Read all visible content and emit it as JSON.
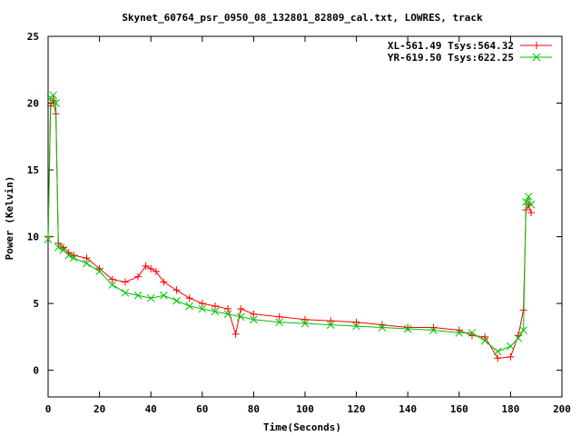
{
  "chart_data": {
    "type": "scatter",
    "title": "Skynet_60764_psr_0950_08_132801_82809_cal.txt, LOWRES, track",
    "xlabel": "Time(Seconds)",
    "ylabel": "Power (Kelvin)",
    "xlim": [
      0,
      200
    ],
    "ylim": [
      -2,
      25
    ],
    "x_ticks": [
      0,
      20,
      40,
      60,
      80,
      100,
      120,
      140,
      160,
      180,
      200
    ],
    "y_ticks": [
      0,
      5,
      10,
      15,
      20,
      25
    ],
    "grid": false,
    "legend_position": "top-right",
    "series": [
      {
        "name": "XL-561.49 Tsys:564.32",
        "color": "#ff0000",
        "marker": "plus",
        "points": [
          [
            0,
            10
          ],
          [
            1,
            19.8
          ],
          [
            2,
            20.2
          ],
          [
            3,
            19.2
          ],
          [
            4,
            9.5
          ],
          [
            6,
            9.2
          ],
          [
            8,
            8.8
          ],
          [
            10,
            8.6
          ],
          [
            15,
            8.4
          ],
          [
            20,
            7.6
          ],
          [
            25,
            6.8
          ],
          [
            30,
            6.6
          ],
          [
            35,
            7.0
          ],
          [
            38,
            7.8
          ],
          [
            40,
            7.6
          ],
          [
            42,
            7.4
          ],
          [
            45,
            6.6
          ],
          [
            50,
            6.0
          ],
          [
            55,
            5.4
          ],
          [
            60,
            5.0
          ],
          [
            65,
            4.8
          ],
          [
            70,
            4.6
          ],
          [
            73,
            2.7
          ],
          [
            75,
            4.6
          ],
          [
            80,
            4.2
          ],
          [
            90,
            4.0
          ],
          [
            100,
            3.8
          ],
          [
            110,
            3.7
          ],
          [
            120,
            3.6
          ],
          [
            130,
            3.4
          ],
          [
            140,
            3.2
          ],
          [
            150,
            3.2
          ],
          [
            160,
            3.0
          ],
          [
            165,
            2.6
          ],
          [
            170,
            2.5
          ],
          [
            175,
            0.9
          ],
          [
            180,
            1.0
          ],
          [
            183,
            2.6
          ],
          [
            185,
            4.5
          ],
          [
            186,
            12.0
          ],
          [
            187,
            12.4
          ],
          [
            188,
            11.8
          ]
        ]
      },
      {
        "name": "YR-619.50 Tsys:622.25",
        "color": "#00c000",
        "marker": "cross",
        "points": [
          [
            0,
            9.8
          ],
          [
            1,
            20.4
          ],
          [
            2,
            20.6
          ],
          [
            3,
            20.0
          ],
          [
            4,
            9.2
          ],
          [
            6,
            9.0
          ],
          [
            8,
            8.6
          ],
          [
            10,
            8.4
          ],
          [
            15,
            8.0
          ],
          [
            20,
            7.4
          ],
          [
            25,
            6.4
          ],
          [
            30,
            5.8
          ],
          [
            35,
            5.6
          ],
          [
            40,
            5.4
          ],
          [
            45,
            5.6
          ],
          [
            50,
            5.2
          ],
          [
            55,
            4.8
          ],
          [
            60,
            4.6
          ],
          [
            65,
            4.4
          ],
          [
            70,
            4.2
          ],
          [
            75,
            4.0
          ],
          [
            80,
            3.8
          ],
          [
            90,
            3.6
          ],
          [
            100,
            3.5
          ],
          [
            110,
            3.4
          ],
          [
            120,
            3.3
          ],
          [
            130,
            3.2
          ],
          [
            140,
            3.1
          ],
          [
            150,
            3.0
          ],
          [
            160,
            2.8
          ],
          [
            165,
            2.8
          ],
          [
            170,
            2.2
          ],
          [
            175,
            1.4
          ],
          [
            180,
            1.8
          ],
          [
            183,
            2.4
          ],
          [
            185,
            3.0
          ],
          [
            186,
            12.6
          ],
          [
            187,
            13.0
          ],
          [
            188,
            12.4
          ]
        ]
      }
    ]
  }
}
